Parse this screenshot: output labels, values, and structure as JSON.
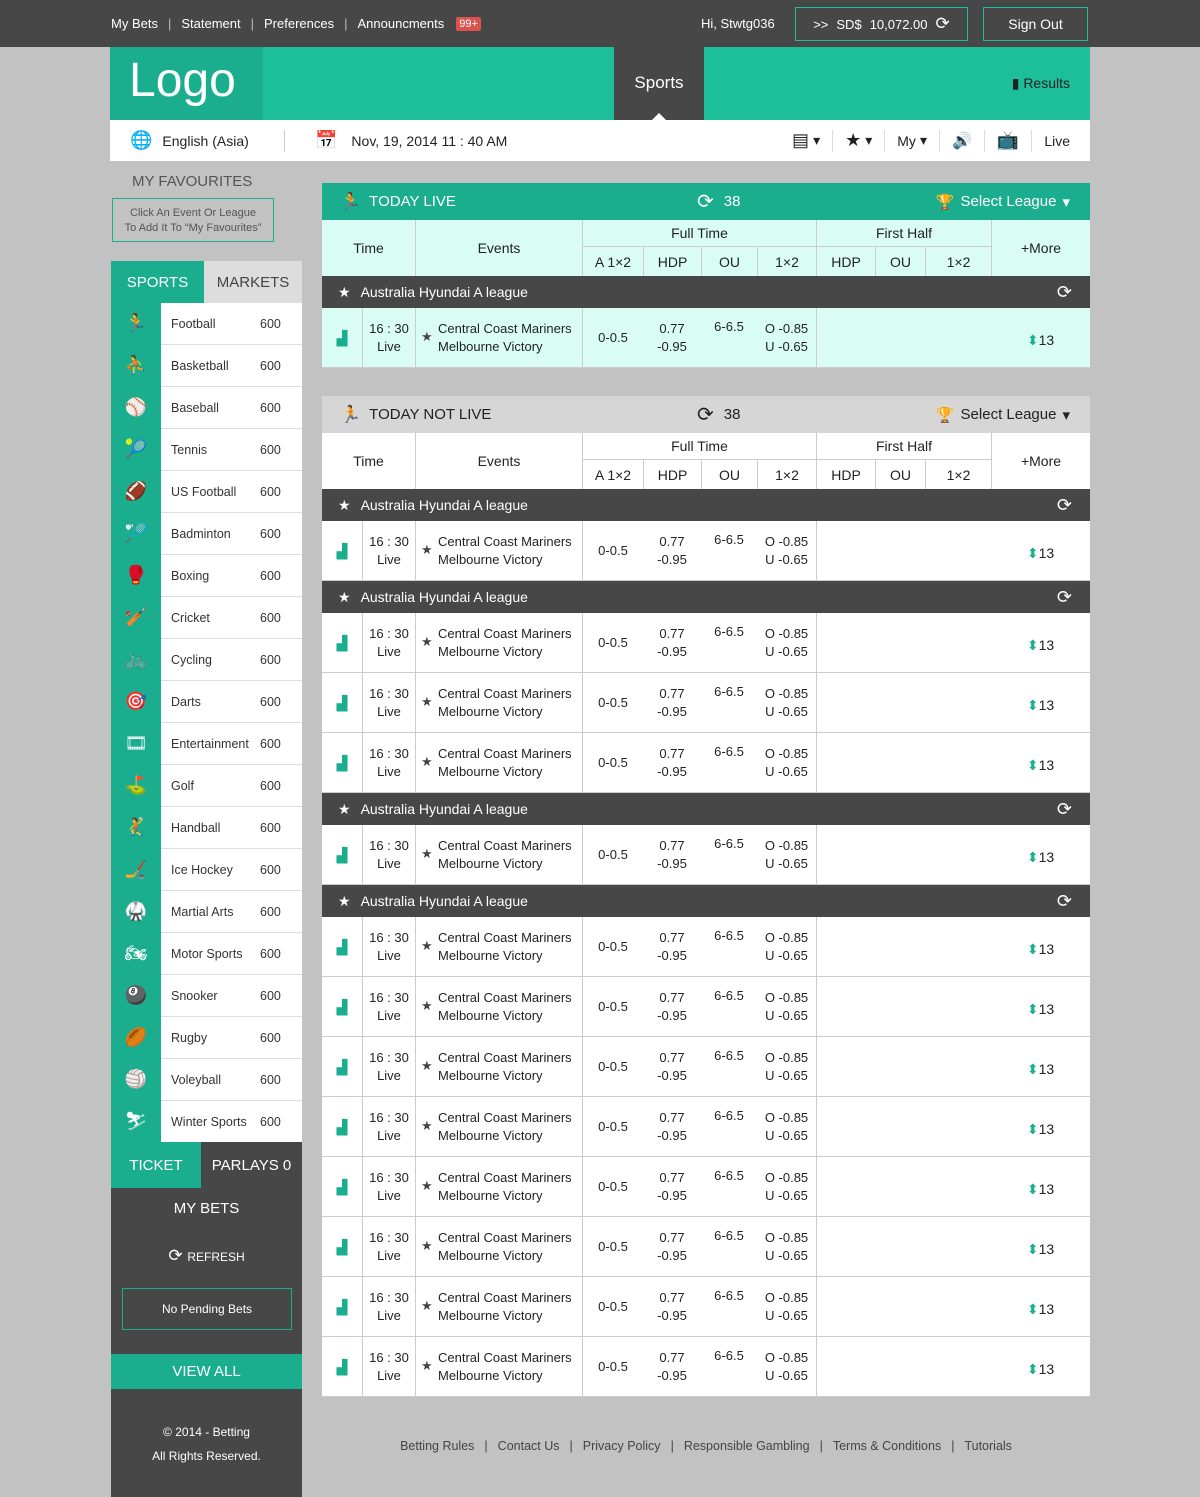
{
  "topbar": {
    "links": [
      "My Bets",
      "Statement",
      "Preferences",
      "Announcments"
    ],
    "badge": "99+",
    "greeting": "Hi, Stwtg036",
    "balance_prefix": ">>",
    "currency": "SD$",
    "balance": "10,072.00",
    "sign_out": "Sign Out"
  },
  "header": {
    "logo": "Logo",
    "sports": "Sports",
    "results": "Results"
  },
  "subbar": {
    "language": "English (Asia)",
    "datetime": "Nov, 19, 2014 11 : 40 AM",
    "my": "My",
    "live": "Live"
  },
  "favourites": {
    "title": "MY FAVOURITES",
    "hint1": "Click An Event Or League",
    "hint2": "To Add It To “My Favourites”"
  },
  "side_tabs": {
    "sports": "SPORTS",
    "markets": "MARKETS"
  },
  "sports": [
    {
      "name": "Football",
      "count": "600",
      "icon": "football-icon"
    },
    {
      "name": "Basketball",
      "count": "600",
      "icon": "basketball-icon"
    },
    {
      "name": "Baseball",
      "count": "600",
      "icon": "baseball-icon"
    },
    {
      "name": "Tennis",
      "count": "600",
      "icon": "tennis-icon"
    },
    {
      "name": "US Football",
      "count": "600",
      "icon": "us-football-icon"
    },
    {
      "name": "Badminton",
      "count": "600",
      "icon": "badminton-icon"
    },
    {
      "name": "Boxing",
      "count": "600",
      "icon": "boxing-icon"
    },
    {
      "name": "Cricket",
      "count": "600",
      "icon": "cricket-icon"
    },
    {
      "name": "Cycling",
      "count": "600",
      "icon": "cycling-icon"
    },
    {
      "name": "Darts",
      "count": "600",
      "icon": "darts-icon"
    },
    {
      "name": "Entertainment",
      "count": "600",
      "icon": "entertainment-icon"
    },
    {
      "name": "Golf",
      "count": "600",
      "icon": "golf-icon"
    },
    {
      "name": "Handball",
      "count": "600",
      "icon": "handball-icon"
    },
    {
      "name": "Ice Hockey",
      "count": "600",
      "icon": "ice-hockey-icon"
    },
    {
      "name": "Martial Arts",
      "count": "600",
      "icon": "martial-arts-icon"
    },
    {
      "name": "Motor Sports",
      "count": "600",
      "icon": "motor-sports-icon"
    },
    {
      "name": "Snooker",
      "count": "600",
      "icon": "snooker-icon"
    },
    {
      "name": "Rugby",
      "count": "600",
      "icon": "rugby-icon"
    },
    {
      "name": "Voleyball",
      "count": "600",
      "icon": "volleyball-icon"
    },
    {
      "name": "Winter Sports",
      "count": "600",
      "icon": "winter-sports-icon"
    }
  ],
  "ticket": {
    "ticket": "TICKET",
    "parlays": "PARLAYS 0",
    "my_bets": "MY BETS",
    "refresh": "REFRESH",
    "pending": "No Pending Bets",
    "view_all": "VIEW ALL",
    "copyright": "© 2014 - Betting",
    "rights": "All Rights Reserved."
  },
  "columns": {
    "time": "Time",
    "events": "Events",
    "full_time": "Full Time",
    "first_half": "First Half",
    "a1x2": "A 1×2",
    "hdp": "HDP",
    "ou": "OU",
    "x12": "1×2",
    "more": "+More"
  },
  "live": {
    "title": "TODAY LIVE",
    "count": "38",
    "select": "Select League",
    "groups": [
      {
        "league": "Australia Hyundai A league",
        "rows": 1
      }
    ]
  },
  "notlive": {
    "title": "TODAY NOT LIVE",
    "count": "38",
    "select": "Select League",
    "groups": [
      {
        "league": "Australia Hyundai A league",
        "rows": 1
      },
      {
        "league": "Australia Hyundai A league",
        "rows": 3
      },
      {
        "league": "Australia Hyundai A league",
        "rows": 1
      },
      {
        "league": "Australia Hyundai A league",
        "rows": 8
      }
    ]
  },
  "match": {
    "time": "16 : 30",
    "status": "Live",
    "home": "Central Coast Mariners",
    "away": "Melbourne Victory",
    "a1x2": "0-0.5",
    "hdp1": "0.77",
    "hdp2": "-0.95",
    "ou": "6-6.5",
    "o": "O -0.85",
    "u": "U -0.65",
    "more": "13"
  },
  "footer": [
    "Betting Rules",
    "Contact Us",
    "Privacy Policy",
    "Responsible Gambling",
    "Terms & Conditions",
    "Tutorials"
  ],
  "colors": {
    "teal": "#1dbf9b",
    "dark": "#474747",
    "live_bg": "#d9fdf5",
    "badge": "#d9534f"
  }
}
